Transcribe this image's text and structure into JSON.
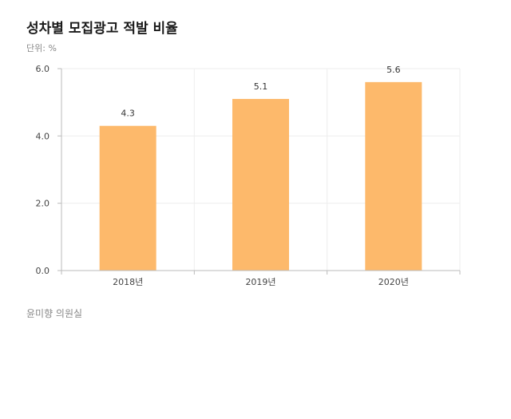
{
  "header": {
    "title": "성차별 모집광고 적발 비율",
    "unit": "단위: %"
  },
  "footer": {
    "source": "윤미향 의원실"
  },
  "colors": {
    "bar": "#FDB96B",
    "grid": "#eeeeee",
    "axis": "#bbbbbb"
  },
  "chart_data": {
    "type": "bar",
    "title": "성차별 모집광고 적발 비율",
    "subtitle": "단위: %",
    "categories": [
      "2018년",
      "2019년",
      "2020년"
    ],
    "values": [
      4.3,
      5.1,
      5.6
    ],
    "data_labels": [
      "4.3",
      "5.1",
      "5.6"
    ],
    "ylim": [
      0,
      6
    ],
    "yticks": [
      "0.0",
      "2.0",
      "4.0",
      "6.0"
    ],
    "grid": true,
    "legend": "none"
  }
}
